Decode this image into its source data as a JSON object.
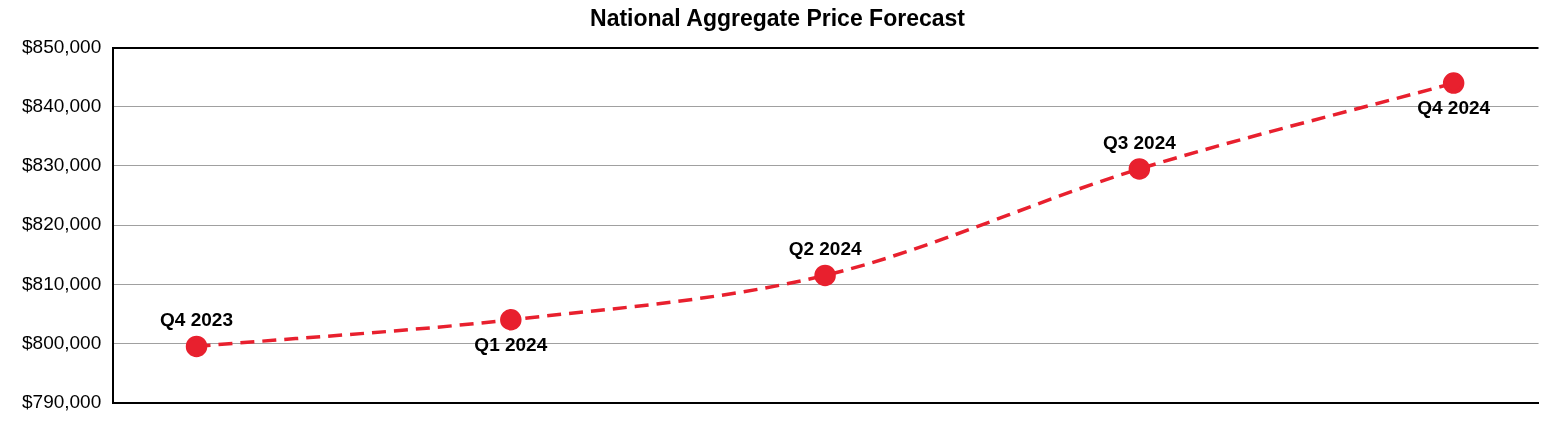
{
  "chart_data": {
    "type": "line",
    "title": "National Aggregate Price Forecast",
    "categories": [
      "Q4 2023",
      "Q1 2024",
      "Q2 2024",
      "Q3 2024",
      "Q4 2024"
    ],
    "series": [
      {
        "color": "#e8202e",
        "values": [
          799500,
          804000,
          811500,
          829500,
          844000
        ]
      }
    ],
    "ylim": [
      790000,
      850000
    ],
    "yticks": [
      {
        "value": 790000,
        "label": "$790,000"
      },
      {
        "value": 800000,
        "label": "$800,000"
      },
      {
        "value": 810000,
        "label": "$810,000"
      },
      {
        "value": 820000,
        "label": "$820,000"
      },
      {
        "value": 830000,
        "label": "$830,000"
      },
      {
        "value": 840000,
        "label": "$840,000"
      },
      {
        "value": 850000,
        "label": "$850,000"
      }
    ],
    "grid": "y",
    "legend": false,
    "marker": "circle",
    "line_style": "dashed",
    "tick_labels": "y"
  }
}
